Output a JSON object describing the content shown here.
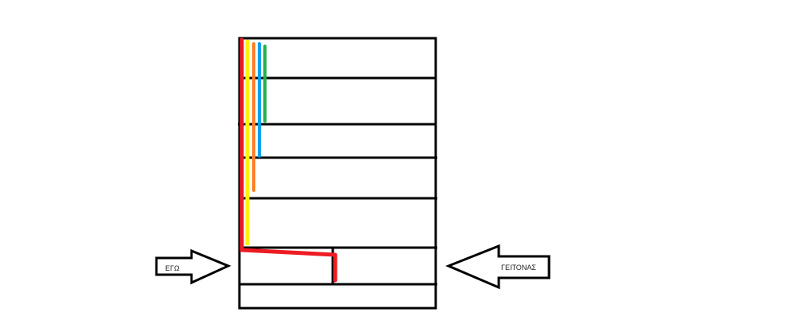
{
  "labels": {
    "left_arrow": "ΕΓΩ",
    "right_arrow": "ΓΕΙΤΟΝΑΣ"
  },
  "colors": {
    "outline": "#000000",
    "red": "#ed1c24",
    "yellow": "#fff200",
    "orange": "#ff7f27",
    "blue": "#00a2e8",
    "green": "#22b14c"
  }
}
